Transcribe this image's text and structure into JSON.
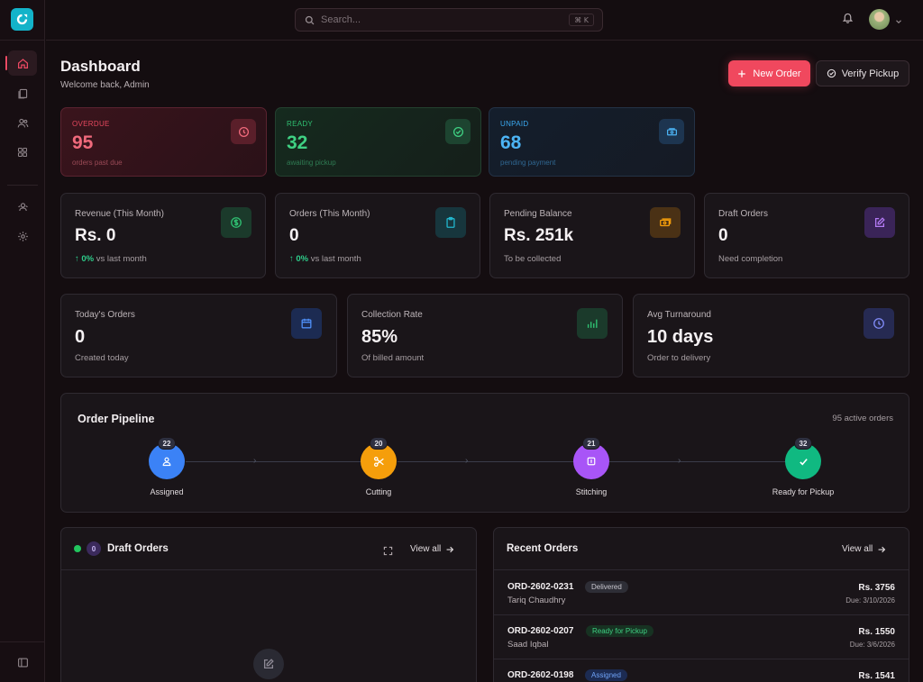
{
  "search": {
    "placeholder": "Search...",
    "shortcut": "⌘ K"
  },
  "header": {
    "title": "Dashboard",
    "subtitle": "Welcome back, Admin",
    "new_order": "New Order",
    "verify_pickup": "Verify Pickup"
  },
  "alerts": [
    {
      "label": "OVERDUE",
      "value": "95",
      "sub": "orders past due",
      "color": "#e5485e"
    },
    {
      "label": "READY",
      "value": "32",
      "sub": "awaiting pickup",
      "color": "#2fbf71"
    },
    {
      "label": "UNPAID",
      "value": "68",
      "sub": "pending payment",
      "color": "#3aa9f0"
    }
  ],
  "stats": [
    {
      "label": "Revenue (This Month)",
      "value": "Rs. 0",
      "change": "0%",
      "change_suffix": "vs last month",
      "icon": "dollar-icon",
      "color": "#2fbf71"
    },
    {
      "label": "Orders (This Month)",
      "value": "0",
      "change": "0%",
      "change_suffix": "vs last month",
      "icon": "clipboard-icon",
      "color": "#22b5cc"
    },
    {
      "label": "Pending Balance",
      "value": "Rs. 251k",
      "sub": "To be collected",
      "icon": "cash-icon",
      "color": "#f59e0b"
    },
    {
      "label": "Draft Orders",
      "value": "0",
      "sub": "Need completion",
      "icon": "edit-icon",
      "color": "#a855f7"
    }
  ],
  "metrics": [
    {
      "label": "Today's Orders",
      "value": "0",
      "sub": "Created today",
      "icon": "calendar-icon",
      "color": "#3b82f6"
    },
    {
      "label": "Collection Rate",
      "value": "85%",
      "sub": "Of billed amount",
      "icon": "bar-chart-icon",
      "color": "#2fbf71"
    },
    {
      "label": "Avg Turnaround",
      "value": "10 days",
      "sub": "Order to delivery",
      "icon": "clock-icon",
      "color": "#6366f1"
    }
  ],
  "pipeline": {
    "title": "Order Pipeline",
    "active": "95 active orders",
    "stages": [
      {
        "label": "Assigned",
        "count": "22",
        "color": "#3b82f6",
        "icon": "user-icon"
      },
      {
        "label": "Cutting",
        "count": "20",
        "color": "#f59e0b",
        "icon": "scissors-icon"
      },
      {
        "label": "Stitching",
        "count": "21",
        "color": "#a855f7",
        "icon": "needle-icon"
      },
      {
        "label": "Ready for Pickup",
        "count": "32",
        "color": "#10b981",
        "icon": "check-icon"
      }
    ]
  },
  "drafts": {
    "title": "Draft Orders",
    "count": "0",
    "view_all": "View all"
  },
  "recent": {
    "title": "Recent Orders",
    "view_all": "View all",
    "orders": [
      {
        "id": "ORD-2602-0231",
        "status": "Delivered",
        "name": "Tariq Chaudhry",
        "amount": "Rs. 3756",
        "due": "Due: 3/10/2026"
      },
      {
        "id": "ORD-2602-0207",
        "status": "Ready for Pickup",
        "name": "Saad Iqbal",
        "amount": "Rs. 1550",
        "due": "Due: 3/6/2026"
      },
      {
        "id": "ORD-2602-0198",
        "status": "Assigned",
        "name": "",
        "amount": "Rs. 1541",
        "due": ""
      }
    ]
  }
}
